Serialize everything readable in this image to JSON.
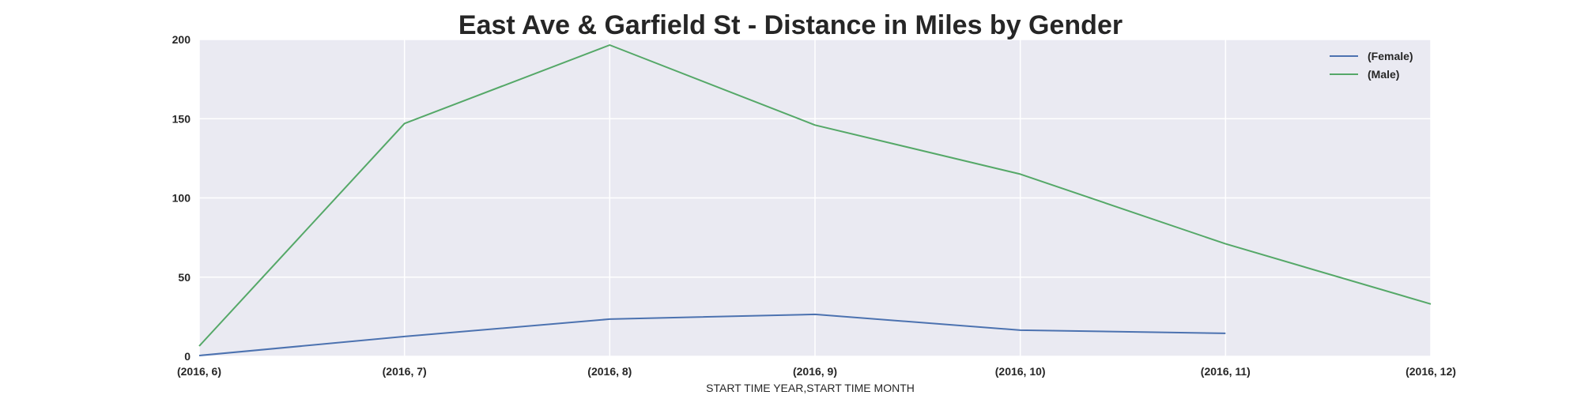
{
  "chart_data": {
    "type": "line",
    "title": "East Ave & Garfield St - Distance in Miles by Gender",
    "xlabel": "START TIME YEAR,START TIME MONTH",
    "ylabel": "",
    "categories": [
      "(2016, 6)",
      "(2016, 7)",
      "(2016, 8)",
      "(2016, 9)",
      "(2016, 10)",
      "(2016, 11)",
      "(2016, 12)"
    ],
    "yticks": [
      "0",
      "50",
      "100",
      "150",
      "200"
    ],
    "ylim": [
      0,
      200
    ],
    "series": [
      {
        "name": "(Female)",
        "color": "#4c72b0",
        "values": [
          0.5,
          12.5,
          23.5,
          26.5,
          16.5,
          14.5,
          null
        ]
      },
      {
        "name": "(Male)",
        "color": "#55a868",
        "values": [
          6.5,
          147,
          196.5,
          146,
          115,
          71,
          33
        ]
      }
    ],
    "grid": true,
    "legend_position": "top-right",
    "colors": {
      "plot_background": "#eaeaf2",
      "grid": "#ffffff"
    }
  }
}
